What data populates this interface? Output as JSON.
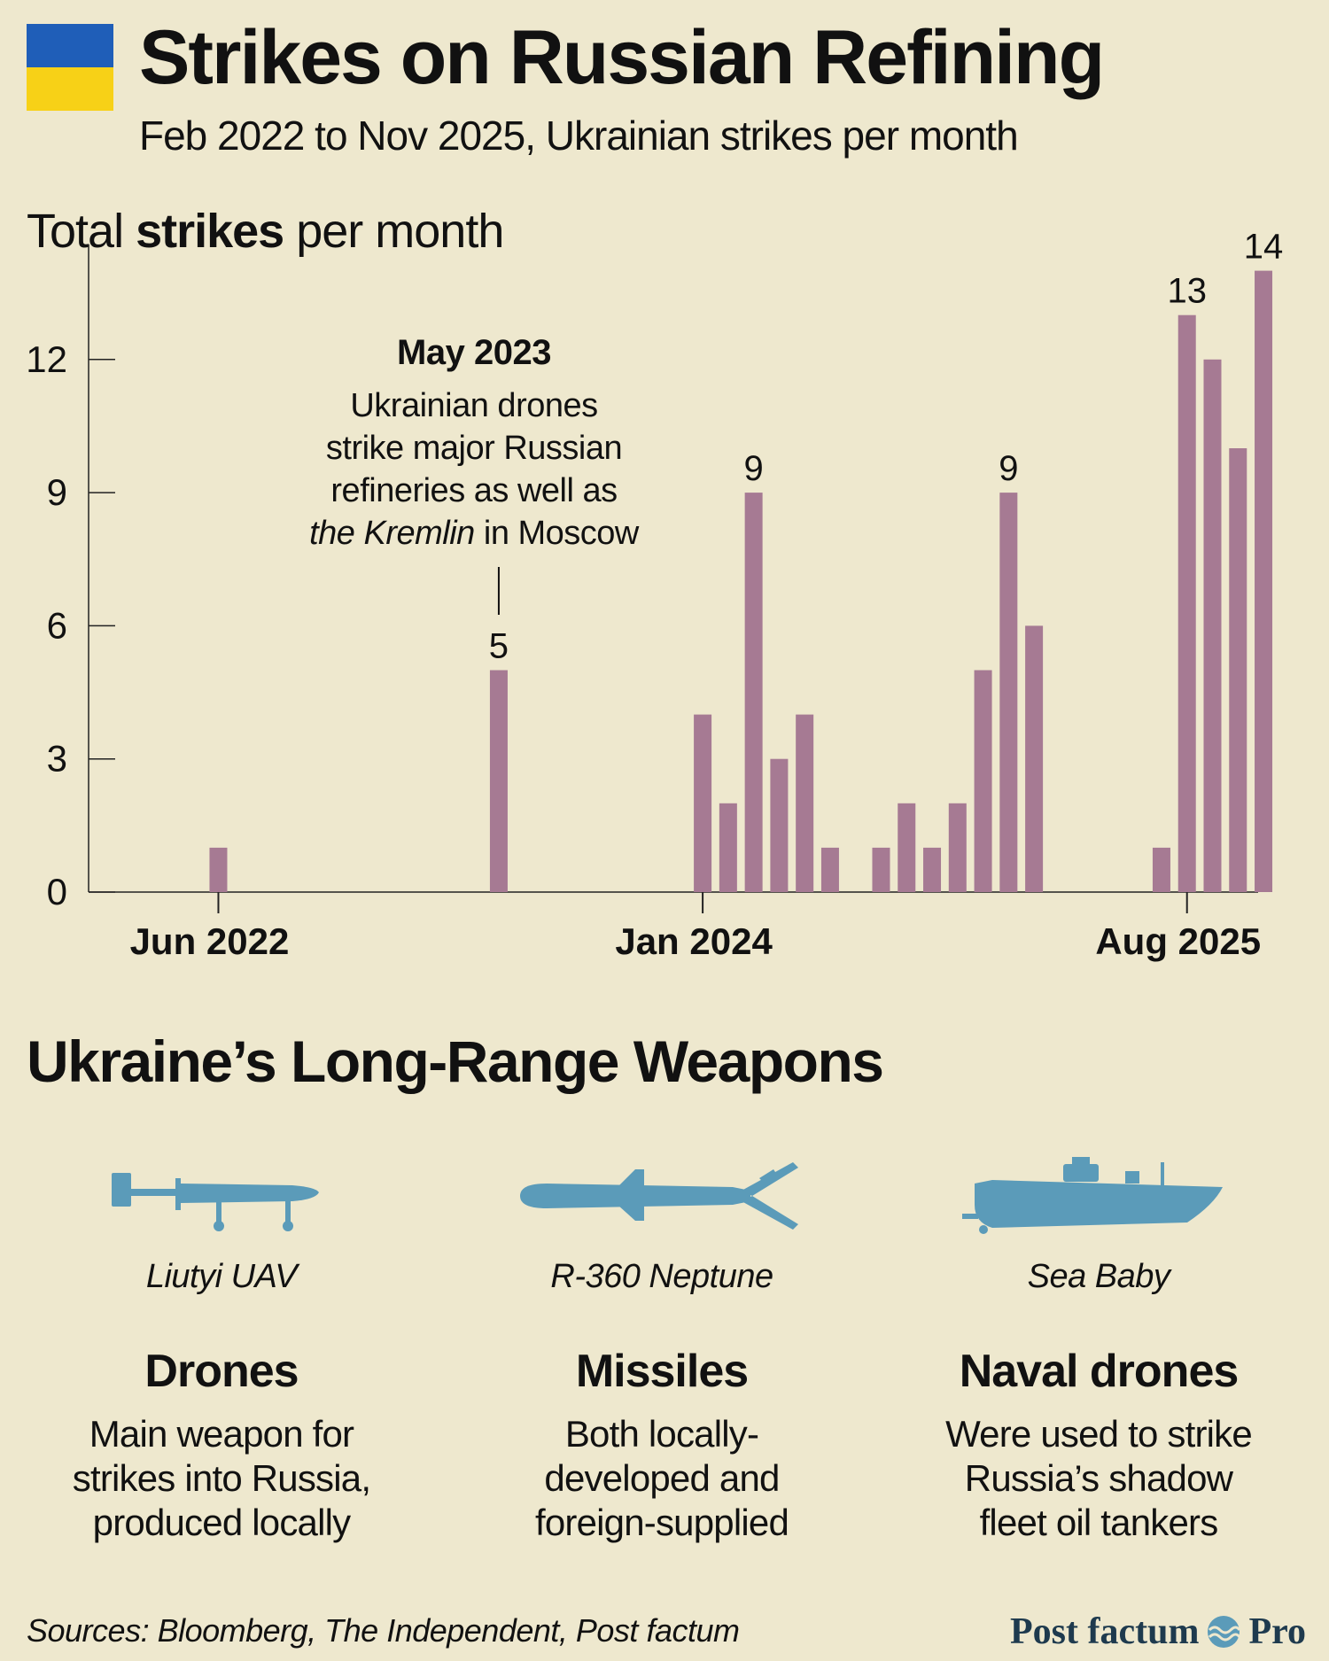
{
  "header": {
    "title": "Strikes on Russian Refining",
    "subtitle": "Feb 2022 to Nov 2025, Ukrainian strikes per month"
  },
  "chart_heading": {
    "pre": "Total ",
    "bold": "strikes",
    "post": " per month"
  },
  "annotation": {
    "title": "May 2023",
    "line1": "Ukrainian drones",
    "line2": "strike major Russian",
    "line3": "refineries as well as",
    "line4_em": "the Kremlin",
    "line4_rest": " in Moscow"
  },
  "chart_data": {
    "type": "bar",
    "title": "",
    "ylabel": "",
    "ylim": [
      0,
      14
    ],
    "yticks": [
      0,
      3,
      6,
      9,
      12
    ],
    "x_start": "Feb 2022",
    "x_tick_labels": [
      {
        "label": "Jun 2022",
        "month_index": 4
      },
      {
        "label": "Jan 2024",
        "month_index": 23
      },
      {
        "label": "Aug 2025",
        "month_index": 42
      }
    ],
    "bar_color": "#A67A93",
    "categories": [
      "Feb 2022",
      "Mar 2022",
      "Apr 2022",
      "May 2022",
      "Jun 2022",
      "Jul 2022",
      "Aug 2022",
      "Sep 2022",
      "Oct 2022",
      "Nov 2022",
      "Dec 2022",
      "Jan 2023",
      "Feb 2023",
      "Mar 2023",
      "Apr 2023",
      "May 2023",
      "Jun 2023",
      "Jul 2023",
      "Aug 2023",
      "Sep 2023",
      "Oct 2023",
      "Nov 2023",
      "Dec 2023",
      "Jan 2024",
      "Feb 2024",
      "Mar 2024",
      "Apr 2024",
      "May 2024",
      "Jun 2024",
      "Jul 2024",
      "Aug 2024",
      "Sep 2024",
      "Oct 2024",
      "Nov 2024",
      "Dec 2024",
      "Jan 2025",
      "Feb 2025",
      "Mar 2025",
      "Apr 2025",
      "May 2025",
      "Jun 2025",
      "Jul 2025",
      "Aug 2025",
      "Sep 2025",
      "Oct 2025",
      "Nov 2025"
    ],
    "values": [
      0,
      0,
      0,
      0,
      1,
      0,
      0,
      0,
      0,
      0,
      0,
      0,
      0,
      0,
      0,
      5,
      0,
      0,
      0,
      0,
      0,
      0,
      0,
      4,
      2,
      9,
      3,
      4,
      1,
      0,
      1,
      2,
      1,
      2,
      5,
      9,
      6,
      0,
      0,
      0,
      0,
      1,
      13,
      12,
      10,
      14
    ],
    "data_labels": [
      {
        "month_index": 15,
        "label": "5"
      },
      {
        "month_index": 25,
        "label": "9"
      },
      {
        "month_index": 35,
        "label": "9"
      },
      {
        "month_index": 42,
        "label": "13"
      },
      {
        "month_index": 45,
        "label": "14"
      }
    ]
  },
  "weapons_section": {
    "title": "Ukraine’s Long-Range Weapons",
    "items": [
      {
        "icon": "uav-drone-icon",
        "name": "Liutyi UAV",
        "heading": "Drones",
        "desc": [
          "Main weapon for",
          "strikes into Russia,",
          "produced locally"
        ]
      },
      {
        "icon": "cruise-missile-icon",
        "name": "R-360 Neptune",
        "heading": "Missiles",
        "desc": [
          "Both locally-",
          "developed and",
          "foreign-supplied"
        ]
      },
      {
        "icon": "naval-drone-boat-icon",
        "name": "Sea Baby",
        "heading": "Naval drones",
        "desc": [
          "Were used to strike",
          "Russia’s shadow",
          "fleet oil tankers"
        ]
      }
    ],
    "icon_color": "#5B9BB9"
  },
  "footer": {
    "sources": "Sources: Bloomberg, The Independent, Post factum",
    "brand_left": "Post factum",
    "brand_right": "Pro"
  }
}
